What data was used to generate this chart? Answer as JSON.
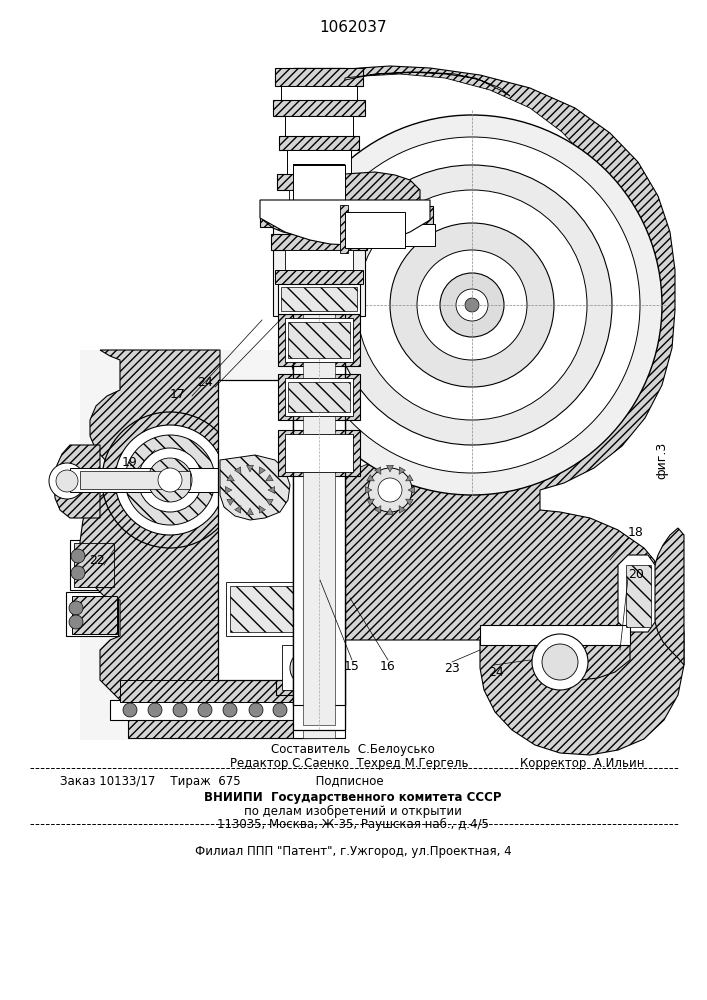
{
  "title": "1062037",
  "bg_color": "#ffffff",
  "fig_width": 7.07,
  "fig_height": 10.0,
  "footer": {
    "line1": "Составитель  С.Белоусько",
    "line2_left": "Редактор С.Саенко  Техред М.Гергель",
    "line2_right": "Корректор  А.Ильин",
    "line3": "Заказ 10133/17    Тираж  675                    Подписное",
    "line4": "ВНИИПИ  Государственного комитета СССР",
    "line5": "по делам изобретений и открытии",
    "line6": "113035, Москва, Ж-35, Раушская наб., д.4/5",
    "line7": "Филиал ППП \"Патент\", г.Ужгород, ул.Проектная, 4"
  }
}
